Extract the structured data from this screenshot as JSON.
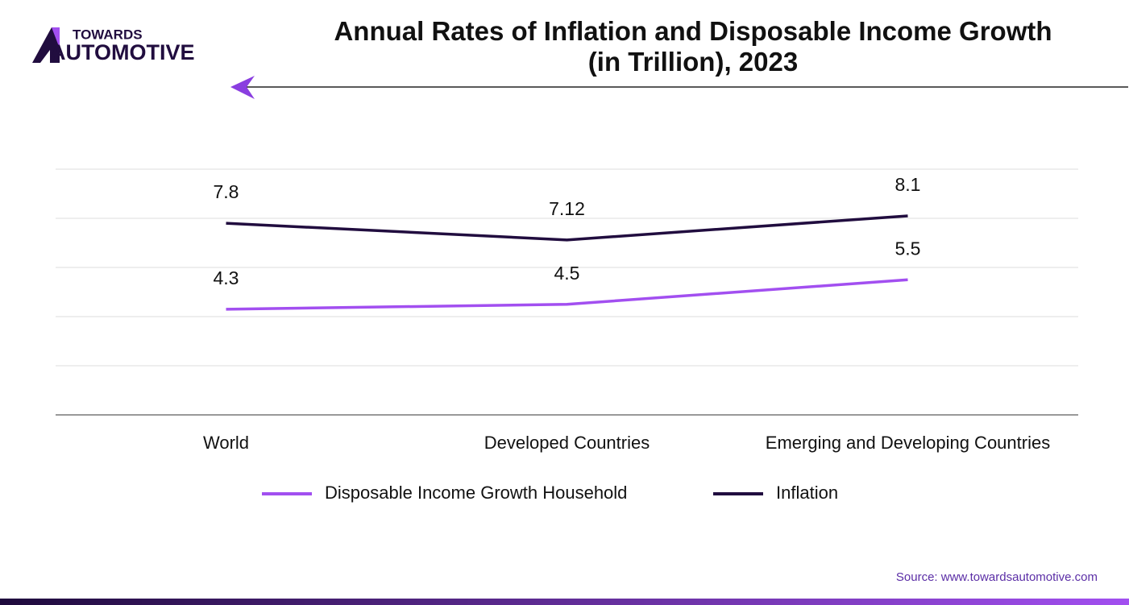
{
  "logo": {
    "top": "TOWARDS",
    "bottom": "AUTOMOTIVE"
  },
  "source": "Source: www.towardsautomotive.com",
  "chart_data": {
    "type": "line",
    "title": "Annual Rates of Inflation and Disposable Income Growth\n(in Trillion), 2023",
    "categories": [
      "World",
      "Developed Countries",
      "Emerging and Developing Countries"
    ],
    "series": [
      {
        "name": "Disposable Income Growth Household",
        "color": "#a24ff0",
        "values": [
          4.3,
          4.5,
          5.5
        ]
      },
      {
        "name": "Inflation",
        "color": "#210d3f",
        "values": [
          7.8,
          7.12,
          8.1
        ]
      }
    ],
    "ylim": [
      0,
      10
    ],
    "yticks": [
      0,
      2,
      4,
      6,
      8,
      10
    ],
    "grid": true,
    "legend": "bottom"
  }
}
